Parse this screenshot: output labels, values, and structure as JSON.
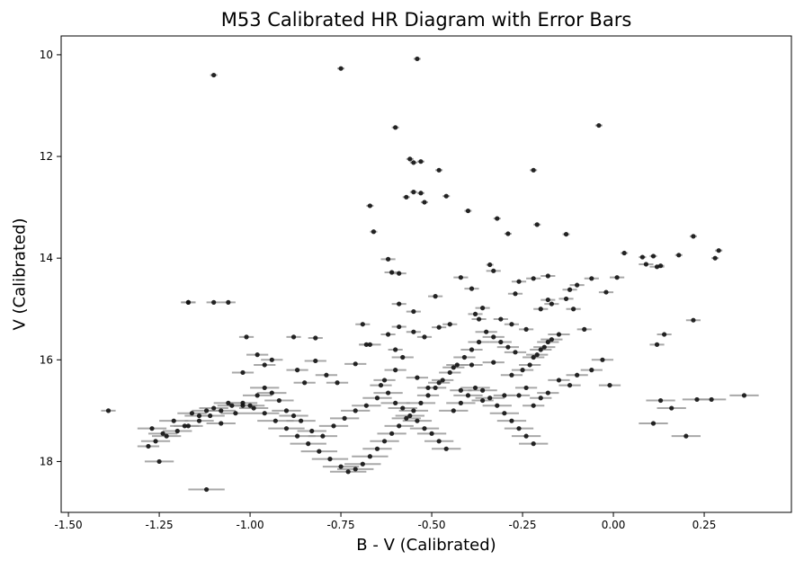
{
  "chart_data": {
    "type": "scatter",
    "title": "M53 Calibrated HR Diagram with Error Bars",
    "xlabel": "B - V (Calibrated)",
    "ylabel": "V (Calibrated)",
    "xlim": [
      -1.52,
      0.49
    ],
    "ylim": [
      19.0,
      9.63
    ],
    "y_inverted": true,
    "grid": false,
    "xticks": [
      "-1.50",
      "-1.25",
      "-1.00",
      "-0.75",
      "-0.50",
      "-0.25",
      "0.00",
      "0.25"
    ],
    "xtick_values": [
      -1.5,
      -1.25,
      -1.0,
      -0.75,
      -0.5,
      -0.25,
      0.0,
      0.25
    ],
    "yticks": [
      "10",
      "12",
      "14",
      "16",
      "18"
    ],
    "ytick_values": [
      10,
      12,
      14,
      16,
      18
    ],
    "point_color": "#111111",
    "errorbar_color": "#999999",
    "series": [
      {
        "x": [
          -1.39,
          -1.28,
          -1.25,
          -1.12,
          -1.17,
          -1.1,
          -0.75,
          -0.54,
          -1.1,
          -1.01,
          -0.53,
          -0.6,
          -0.04,
          -0.22,
          -0.48,
          -0.55,
          -0.56,
          -0.55,
          -0.53,
          -0.57,
          -0.52,
          -0.46,
          -0.4,
          -0.32,
          -0.34,
          -0.29,
          -0.21,
          -0.13,
          -0.67,
          -0.66,
          0.22,
          0.03,
          0.08,
          0.11,
          0.13,
          0.18,
          0.29,
          0.28,
          -0.59,
          -0.62,
          -0.61,
          -0.59,
          -0.55,
          -0.49,
          -0.39,
          -0.42,
          -0.33,
          -0.36,
          -0.27,
          -0.26,
          -0.18,
          -0.22,
          -0.18,
          -0.12,
          -0.1,
          -0.06,
          -0.02,
          0.01,
          0.09,
          0.12,
          0.22,
          -1.17,
          -1.06,
          -0.88,
          -0.82,
          -0.69,
          -0.68,
          -0.62,
          -0.6,
          -0.59,
          -0.55,
          -0.52,
          -0.48,
          -0.45,
          -0.38,
          -0.37,
          -0.31,
          -0.28,
          -0.24,
          -0.2,
          -0.17,
          -0.13,
          -0.11,
          -0.08,
          -1.02,
          -0.98,
          -0.96,
          -0.94,
          -0.87,
          -0.85,
          -0.82,
          -0.79,
          -0.76,
          -0.71,
          -0.67,
          -0.64,
          -0.63,
          -0.6,
          -0.58,
          -0.54,
          -0.51,
          -0.48,
          -0.44,
          -0.42,
          -0.39,
          -0.36,
          -0.33,
          -0.3,
          -0.28,
          -0.26,
          -0.24,
          -0.22,
          -0.2,
          -0.18,
          -0.15,
          -0.12,
          -0.1,
          -0.06,
          -0.03,
          -0.01,
          0.11,
          0.13,
          0.16,
          0.2,
          0.23,
          0.27,
          0.36,
          0.14,
          0.12,
          -1.27,
          -1.24,
          -1.21,
          -1.18,
          -1.16,
          -1.14,
          -1.12,
          -1.1,
          -1.08,
          -1.06,
          -1.04,
          -1.02,
          -1.0,
          -0.98,
          -0.96,
          -0.94,
          -0.92,
          -0.9,
          -0.88,
          -0.86,
          -0.83,
          -0.8,
          -0.77,
          -0.74,
          -0.71,
          -0.68,
          -0.65,
          -0.62,
          -0.6,
          -0.58,
          -0.56,
          -0.54,
          -0.52,
          -0.5,
          -0.48,
          -0.46,
          -0.44,
          -0.42,
          -0.4,
          -0.38,
          -0.36,
          -0.34,
          -0.32,
          -0.3,
          -0.28,
          -0.26,
          -0.24,
          -0.22,
          -0.25,
          -0.23,
          -0.21,
          -0.19,
          -0.17,
          -0.15,
          -0.22,
          -0.2,
          -0.18,
          -0.27,
          -0.29,
          -0.31,
          -0.33,
          -0.35,
          -0.37,
          -0.39,
          -0.41,
          -0.43,
          -0.45,
          -0.47,
          -0.49,
          -0.51,
          -0.53,
          -0.55,
          -0.57,
          -0.59,
          -0.61,
          -0.63,
          -0.65,
          -0.67,
          -0.69,
          -0.71,
          -0.73,
          -0.75,
          -0.78,
          -0.81,
          -0.84,
          -0.87,
          -0.9,
          -0.93,
          -0.96,
          -0.99,
          -1.02,
          -1.05,
          -1.08,
          -1.11,
          -1.14,
          -1.17,
          -1.2,
          -1.23,
          -1.26
        ],
        "y": [
          17.0,
          17.7,
          18.0,
          18.55,
          14.87,
          10.4,
          10.27,
          10.08,
          14.87,
          15.55,
          12.1,
          11.43,
          11.39,
          12.27,
          12.27,
          12.7,
          12.05,
          12.12,
          12.72,
          12.8,
          12.9,
          12.78,
          13.07,
          13.22,
          14.13,
          13.52,
          13.34,
          13.53,
          12.97,
          13.48,
          13.57,
          13.9,
          13.98,
          13.96,
          14.15,
          13.94,
          13.85,
          14.0,
          14.3,
          14.02,
          14.28,
          14.9,
          15.05,
          14.75,
          14.6,
          14.38,
          14.25,
          14.98,
          14.7,
          14.46,
          14.35,
          14.4,
          14.82,
          14.62,
          14.53,
          14.4,
          14.67,
          14.38,
          14.12,
          14.17,
          15.22,
          14.87,
          14.87,
          15.55,
          15.57,
          15.3,
          15.7,
          15.5,
          15.8,
          15.35,
          15.45,
          15.55,
          15.36,
          15.3,
          15.1,
          15.2,
          15.2,
          15.3,
          15.4,
          15.0,
          14.9,
          14.8,
          15.0,
          15.4,
          16.25,
          15.9,
          16.1,
          16.0,
          16.2,
          16.45,
          16.02,
          16.3,
          16.45,
          16.08,
          15.7,
          16.5,
          16.4,
          16.2,
          15.95,
          16.35,
          16.55,
          16.45,
          16.15,
          16.6,
          16.1,
          16.8,
          16.05,
          16.7,
          16.3,
          16.7,
          16.55,
          16.9,
          16.75,
          16.65,
          16.4,
          16.5,
          16.3,
          16.2,
          16.0,
          16.5,
          17.25,
          16.8,
          16.95,
          17.5,
          16.78,
          16.78,
          16.7,
          15.5,
          15.7,
          17.35,
          17.45,
          17.2,
          17.3,
          17.05,
          17.1,
          17.0,
          16.95,
          17.25,
          16.85,
          17.05,
          16.9,
          16.9,
          16.7,
          16.55,
          16.65,
          16.8,
          17.0,
          17.1,
          17.2,
          17.4,
          17.5,
          17.3,
          17.15,
          17.0,
          16.9,
          16.75,
          16.65,
          16.85,
          16.95,
          17.1,
          17.2,
          17.35,
          17.45,
          17.6,
          17.75,
          17.0,
          16.85,
          16.7,
          16.55,
          16.6,
          16.75,
          16.9,
          17.05,
          17.2,
          17.35,
          17.5,
          17.65,
          16.2,
          16.1,
          15.9,
          15.75,
          15.6,
          15.5,
          15.95,
          15.8,
          15.65,
          15.85,
          15.75,
          15.65,
          15.55,
          15.45,
          15.65,
          15.8,
          15.95,
          16.1,
          16.25,
          16.4,
          16.55,
          16.7,
          16.85,
          17.0,
          17.15,
          17.3,
          17.45,
          17.6,
          17.75,
          17.9,
          18.05,
          18.15,
          18.2,
          18.1,
          17.95,
          17.8,
          17.65,
          17.5,
          17.35,
          17.2,
          17.05,
          16.95,
          16.85,
          16.9,
          17.0,
          17.1,
          17.2,
          17.3,
          17.4,
          17.5,
          17.6
        ],
        "xerr": [
          0.02,
          0.03,
          0.04,
          0.05,
          0.02,
          0.01,
          0.01,
          0.01,
          0.02,
          0.02,
          0.01,
          0.01,
          0.01,
          0.01,
          0.01,
          0.01,
          0.01,
          0.01,
          0.01,
          0.01,
          0.01,
          0.01,
          0.01,
          0.01,
          0.01,
          0.01,
          0.01,
          0.01,
          0.01,
          0.01,
          0.01,
          0.01,
          0.01,
          0.01,
          0.01,
          0.01,
          0.01,
          0.01,
          0.02,
          0.02,
          0.02,
          0.02,
          0.02,
          0.02,
          0.02,
          0.02,
          0.02,
          0.02,
          0.02,
          0.02,
          0.02,
          0.02,
          0.02,
          0.02,
          0.02,
          0.02,
          0.02,
          0.02,
          0.02,
          0.02,
          0.02,
          0.02,
          0.02,
          0.02,
          0.02,
          0.02,
          0.02,
          0.02,
          0.02,
          0.02,
          0.02,
          0.02,
          0.02,
          0.02,
          0.02,
          0.02,
          0.02,
          0.02,
          0.02,
          0.02,
          0.02,
          0.02,
          0.02,
          0.02,
          0.03,
          0.03,
          0.03,
          0.03,
          0.03,
          0.03,
          0.03,
          0.03,
          0.03,
          0.03,
          0.03,
          0.03,
          0.03,
          0.03,
          0.03,
          0.03,
          0.03,
          0.03,
          0.03,
          0.03,
          0.03,
          0.03,
          0.03,
          0.03,
          0.03,
          0.03,
          0.03,
          0.03,
          0.03,
          0.03,
          0.03,
          0.03,
          0.03,
          0.03,
          0.03,
          0.03,
          0.04,
          0.04,
          0.04,
          0.04,
          0.04,
          0.04,
          0.04,
          0.02,
          0.02,
          0.04,
          0.04,
          0.04,
          0.04,
          0.04,
          0.04,
          0.04,
          0.04,
          0.04,
          0.04,
          0.04,
          0.04,
          0.04,
          0.04,
          0.04,
          0.04,
          0.04,
          0.04,
          0.04,
          0.04,
          0.04,
          0.04,
          0.04,
          0.04,
          0.04,
          0.04,
          0.04,
          0.04,
          0.04,
          0.04,
          0.04,
          0.04,
          0.04,
          0.04,
          0.04,
          0.04,
          0.04,
          0.04,
          0.04,
          0.04,
          0.04,
          0.04,
          0.04,
          0.04,
          0.04,
          0.04,
          0.04,
          0.04,
          0.03,
          0.03,
          0.03,
          0.03,
          0.03,
          0.03,
          0.03,
          0.03,
          0.03,
          0.03,
          0.03,
          0.03,
          0.03,
          0.03,
          0.03,
          0.03,
          0.03,
          0.03,
          0.03,
          0.03,
          0.03,
          0.03,
          0.04,
          0.04,
          0.04,
          0.04,
          0.04,
          0.04,
          0.04,
          0.05,
          0.05,
          0.05,
          0.05,
          0.05,
          0.05,
          0.05,
          0.05,
          0.05,
          0.05,
          0.05,
          0.04,
          0.04,
          0.04,
          0.04,
          0.04,
          0.04,
          0.04,
          0.04,
          0.04,
          0.04,
          0.04
        ]
      }
    ]
  }
}
